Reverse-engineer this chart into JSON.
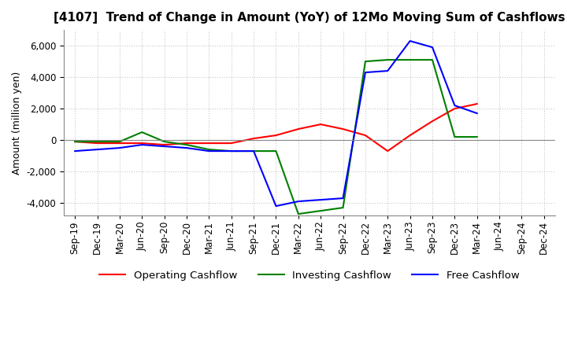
{
  "title": "[4107]  Trend of Change in Amount (YoY) of 12Mo Moving Sum of Cashflows",
  "ylabel": "Amount (million yen)",
  "ylim": [
    -4800,
    7000
  ],
  "yticks": [
    -4000,
    -2000,
    0,
    2000,
    4000,
    6000
  ],
  "x_labels": [
    "Sep-19",
    "Dec-19",
    "Mar-20",
    "Jun-20",
    "Sep-20",
    "Dec-20",
    "Mar-21",
    "Jun-21",
    "Sep-21",
    "Dec-21",
    "Mar-22",
    "Jun-22",
    "Sep-22",
    "Dec-22",
    "Mar-23",
    "Jun-23",
    "Sep-23",
    "Dec-23",
    "Mar-24",
    "Jun-24",
    "Sep-24",
    "Dec-24"
  ],
  "operating": [
    -100,
    -200,
    -200,
    -200,
    -300,
    -200,
    -200,
    -200,
    100,
    300,
    700,
    1000,
    700,
    300,
    -700,
    300,
    1200,
    2000,
    2300,
    null,
    null,
    null
  ],
  "investing": [
    -100,
    -100,
    -100,
    500,
    -100,
    -300,
    -600,
    -700,
    -700,
    -700,
    -4700,
    -4500,
    -4300,
    5000,
    5100,
    5100,
    5100,
    200,
    200,
    null,
    null,
    null
  ],
  "free": [
    -700,
    -600,
    -500,
    -300,
    -400,
    -500,
    -700,
    -700,
    -700,
    -4200,
    -3900,
    -3800,
    -3700,
    4300,
    4400,
    6300,
    5900,
    2200,
    1700,
    null,
    null,
    null
  ],
  "operating_color": "#ff0000",
  "investing_color": "#008000",
  "free_color": "#0000ff",
  "background_color": "#ffffff",
  "grid_color": "#c8c8c8",
  "title_fontsize": 11,
  "axis_fontsize": 8.5,
  "legend_fontsize": 9.5
}
